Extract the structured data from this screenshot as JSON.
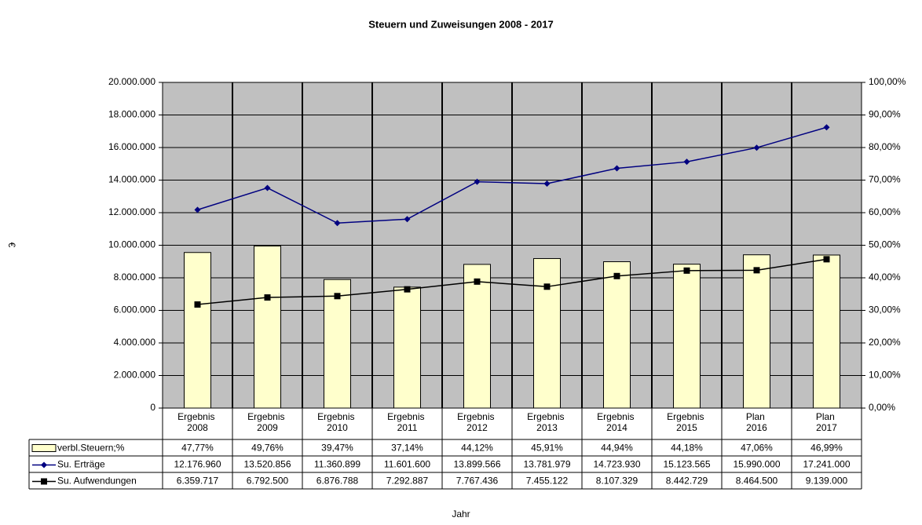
{
  "chart_data": {
    "type": "bar-line-table",
    "title": "Steuern und Zuweisungen 2008 - 2017",
    "x_label": "Jahr",
    "y_label": "€",
    "categories": [
      "Ergebnis 2008",
      "Ergebnis 2009",
      "Ergebnis 2010",
      "Ergebnis 2011",
      "Ergebnis 2012",
      "Ergebnis 2013",
      "Ergebnis 2014",
      "Ergebnis 2015",
      "Plan 2016",
      "Plan 2017"
    ],
    "series": [
      {
        "name": "verbl.Steuern;%",
        "type": "bar",
        "axis": "y2",
        "color": "#ffffcc",
        "values": [
          47.77,
          49.76,
          39.47,
          37.14,
          44.12,
          45.91,
          44.94,
          44.18,
          47.06,
          46.99
        ],
        "value_labels": [
          "47,77%",
          "49,76%",
          "39,47%",
          "37,14%",
          "44,12%",
          "45,91%",
          "44,94%",
          "44,18%",
          "47,06%",
          "46,99%"
        ]
      },
      {
        "name": "Su. Erträge",
        "type": "line",
        "marker": "diamond",
        "color": "#000080",
        "values": [
          12176960,
          13520856,
          11360899,
          11601600,
          13899566,
          13781979,
          14723930,
          15123565,
          15990000,
          17241000
        ],
        "value_labels": [
          "12.176.960",
          "13.520.856",
          "11.360.899",
          "11.601.600",
          "13.899.566",
          "13.781.979",
          "14.723.930",
          "15.123.565",
          "15.990.000",
          "17.241.000"
        ]
      },
      {
        "name": "Su. Aufwendungen",
        "type": "line",
        "marker": "square",
        "color": "#000000",
        "values": [
          6359717,
          6792500,
          6876788,
          7292887,
          7767436,
          7455122,
          8107329,
          8442729,
          8464500,
          9139000
        ],
        "value_labels": [
          "6.359.717",
          "6.792.500",
          "6.876.788",
          "7.292.887",
          "7.767.436",
          "7.455.122",
          "8.107.329",
          "8.442.729",
          "8.464.500",
          "9.139.000"
        ]
      }
    ],
    "ylim": [
      0,
      20000000
    ],
    "yticks": [
      0,
      {
        "value": 2000000,
        "label": "2.000.000"
      },
      {
        "value": 4000000,
        "label": "4.000.000"
      },
      {
        "value": 6000000,
        "label": "6.000.000"
      },
      {
        "value": 8000000,
        "label": "8.000.000"
      },
      {
        "value": 10000000,
        "label": "10.000.000"
      },
      {
        "value": 12000000,
        "label": "12.000.000"
      },
      {
        "value": 14000000,
        "label": "14.000.000"
      },
      {
        "value": 16000000,
        "label": "16.000.000"
      },
      {
        "value": 18000000,
        "label": "18.000.000"
      },
      {
        "value": 20000000,
        "label": "20.000.000"
      }
    ],
    "y2lim": [
      0,
      100
    ],
    "y2ticks": [
      {
        "value": 0,
        "label": "0,00%"
      },
      {
        "value": 10,
        "label": "10,00%"
      },
      {
        "value": 20,
        "label": "20,00%"
      },
      {
        "value": 30,
        "label": "30,00%"
      },
      {
        "value": 40,
        "label": "40,00%"
      },
      {
        "value": 50,
        "label": "50,00%"
      },
      {
        "value": 60,
        "label": "60,00%"
      },
      {
        "value": 70,
        "label": "70,00%"
      },
      {
        "value": 80,
        "label": "80,00%"
      },
      {
        "value": 90,
        "label": "90,00%"
      },
      {
        "value": 100,
        "label": "100,00%"
      }
    ],
    "grid": true,
    "plot_background": "#c0c0c0"
  }
}
